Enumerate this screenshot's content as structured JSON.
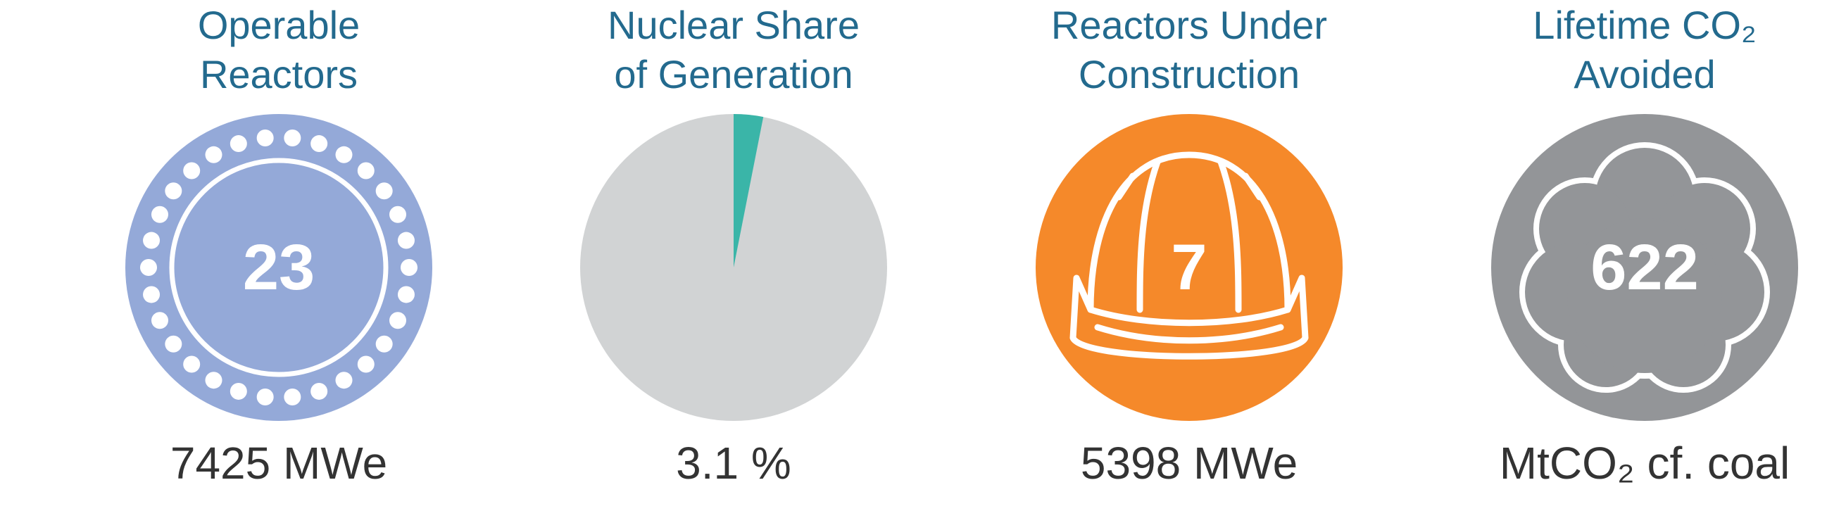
{
  "panels": [
    {
      "title_lines": [
        "Operable",
        "Reactors"
      ],
      "value": 23,
      "caption": "7425 MWe"
    },
    {
      "title_lines": [
        "Nuclear Share",
        "of Generation"
      ],
      "share": {
        "value": 3.1,
        "label": "3.1 %"
      },
      "share_color": "#3ab5a8",
      "rest_color": "#d1d3d4"
    },
    {
      "title_lines": [
        "Reactors Under",
        "Construction"
      ],
      "value": 7,
      "caption": "5398 MWe"
    },
    {
      "title_lines": [
        "Lifetime CO₂",
        "Avoided"
      ],
      "value": 622,
      "caption": "MtCO₂ cf. coal"
    }
  ]
}
